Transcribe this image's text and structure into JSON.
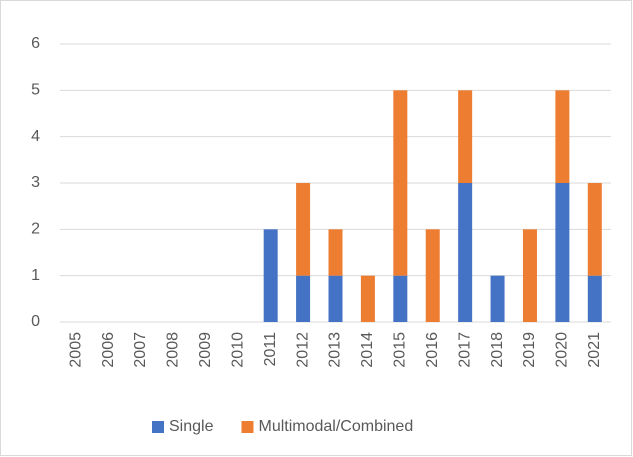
{
  "chart_data": {
    "type": "stacked_bar",
    "categories": [
      "2005",
      "2006",
      "2007",
      "2008",
      "2009",
      "2010",
      "2011",
      "2012",
      "2013",
      "2014",
      "2015",
      "2016",
      "2017",
      "2018",
      "2019",
      "2020",
      "2021"
    ],
    "series": [
      {
        "name": "Single",
        "color": "#4472c4",
        "values": [
          0,
          0,
          0,
          0,
          0,
          0,
          2,
          1,
          1,
          0,
          1,
          0,
          3,
          1,
          0,
          3,
          1
        ]
      },
      {
        "name": "Multimodal/Combined",
        "color": "#ed7d31",
        "values": [
          0,
          0,
          0,
          0,
          0,
          0,
          0,
          2,
          1,
          1,
          4,
          2,
          2,
          0,
          2,
          2,
          2
        ]
      }
    ],
    "ylim": [
      0,
      6
    ],
    "yticks": [
      0,
      1,
      2,
      3,
      4,
      5,
      6
    ],
    "grid": true,
    "legend": "bottom"
  }
}
